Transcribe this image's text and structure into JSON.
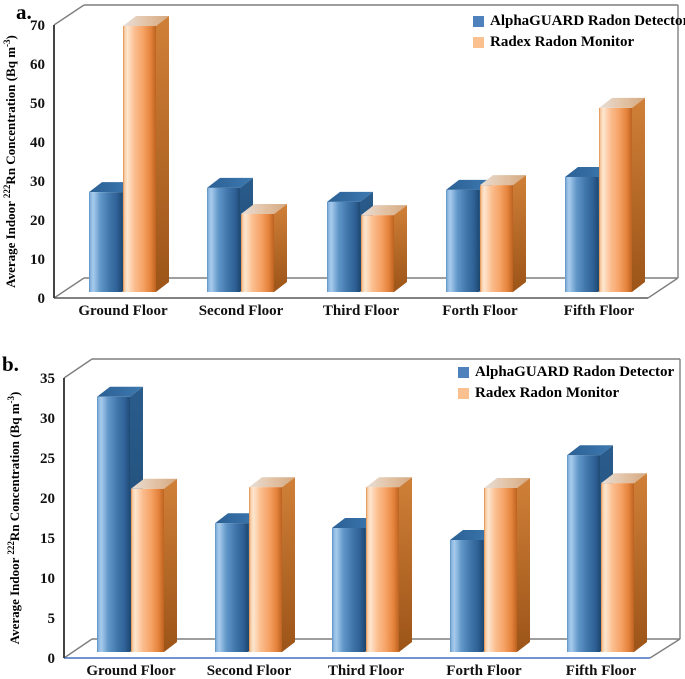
{
  "page": {
    "background": "#ffffff"
  },
  "colors": {
    "blue_series": "#4f81bd",
    "orange_series": "#fac090",
    "frame_line": "#7f7f7f",
    "axis_line": "#303030",
    "panel_a_baseline": "#595959",
    "panel_b_baseline": "#4472c4",
    "text": "#111111"
  },
  "chart_data": [
    {
      "type": "bar",
      "style": "3d-clustered",
      "panel_label": "a.",
      "categories": [
        "Ground Floor",
        "Second Floor",
        "Third Floor",
        "Forth Floor",
        "Fifth Floor"
      ],
      "series": [
        {
          "name": "AlphaGUARD Radon Detector",
          "color": "#4f81bd",
          "values": [
            25.6,
            26.7,
            23.1,
            26.2,
            29.5
          ]
        },
        {
          "name": "Radex Radon Monitor",
          "color": "#fac090",
          "values": [
            68.2,
            20.0,
            19.7,
            27.4,
            47.2
          ]
        }
      ],
      "ylabel": "Average Indoor ²²²Rn Concentration (Bq m⁻³)",
      "ylabel_parts": [
        {
          "t": "Average Indoor "
        },
        {
          "t": "222",
          "sup": true
        },
        {
          "t": "Rn Concentration (Bq m"
        },
        {
          "t": "-3",
          "sup": true
        },
        {
          "t": ")"
        }
      ],
      "xlabel": "",
      "ylim": [
        0,
        70
      ],
      "ytick_step": 10,
      "yticks": [
        0,
        10,
        20,
        30,
        40,
        50,
        60,
        70
      ],
      "legend_position": "top-right",
      "grid": false
    },
    {
      "type": "bar",
      "style": "3d-clustered",
      "panel_label": "b.",
      "categories": [
        "Ground Floor",
        "Second Floor",
        "Third Floor",
        "Forth Floor",
        "Fifth Floor"
      ],
      "series": [
        {
          "name": "AlphaGUARD Radon Detector",
          "color": "#4f81bd",
          "values": [
            31.9,
            16.1,
            15.5,
            14.0,
            24.6
          ]
        },
        {
          "name": "Radex Radon Monitor",
          "color": "#fac090",
          "values": [
            20.4,
            20.6,
            20.6,
            20.5,
            21.1
          ]
        }
      ],
      "ylabel": "Average Indoor ²²²Rn Concentration (Bq m⁻³)",
      "ylabel_parts": [
        {
          "t": "Average Indoor "
        },
        {
          "t": "222",
          "sup": true
        },
        {
          "t": "Rn Concentration (Bq m"
        },
        {
          "t": "-3",
          "sup": true
        },
        {
          "t": ")"
        }
      ],
      "xlabel": "",
      "ylim": [
        0,
        35
      ],
      "ytick_step": 5,
      "yticks": [
        0,
        5,
        10,
        15,
        20,
        25,
        30,
        35
      ],
      "legend_position": "top-right",
      "grid": false
    }
  ]
}
